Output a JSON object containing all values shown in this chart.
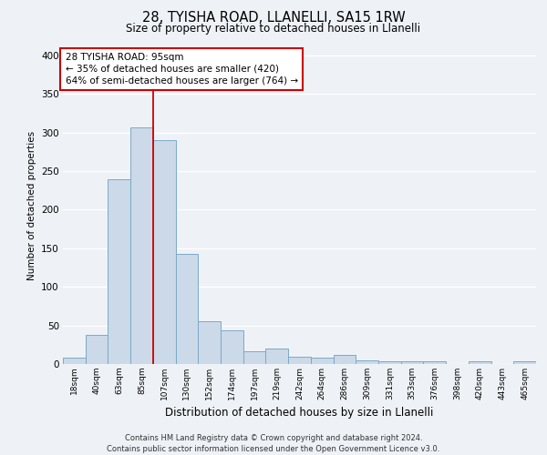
{
  "title": "28, TYISHA ROAD, LLANELLI, SA15 1RW",
  "subtitle": "Size of property relative to detached houses in Llanelli",
  "xlabel": "Distribution of detached houses by size in Llanelli",
  "ylabel": "Number of detached properties",
  "bin_labels": [
    "18sqm",
    "40sqm",
    "63sqm",
    "85sqm",
    "107sqm",
    "130sqm",
    "152sqm",
    "174sqm",
    "197sqm",
    "219sqm",
    "242sqm",
    "264sqm",
    "286sqm",
    "309sqm",
    "331sqm",
    "353sqm",
    "376sqm",
    "398sqm",
    "420sqm",
    "443sqm",
    "465sqm"
  ],
  "bar_values": [
    8,
    38,
    240,
    307,
    290,
    143,
    56,
    44,
    17,
    20,
    10,
    8,
    12,
    5,
    3,
    3,
    4,
    0,
    3,
    0,
    4
  ],
  "bar_color": "#ccd9e8",
  "bar_edge_color": "#7aaac8",
  "vline_color": "#cc0000",
  "annotation_title": "28 TYISHA ROAD: 95sqm",
  "annotation_line1": "← 35% of detached houses are smaller (420)",
  "annotation_line2": "64% of semi-detached houses are larger (764) →",
  "annotation_box_color": "#ffffff",
  "annotation_box_edge": "#cc0000",
  "ylim": [
    0,
    410
  ],
  "yticks": [
    0,
    50,
    100,
    150,
    200,
    250,
    300,
    350,
    400
  ],
  "bg_color": "#eef2f7",
  "footer_line1": "Contains HM Land Registry data © Crown copyright and database right 2024.",
  "footer_line2": "Contains public sector information licensed under the Open Government Licence v3.0."
}
